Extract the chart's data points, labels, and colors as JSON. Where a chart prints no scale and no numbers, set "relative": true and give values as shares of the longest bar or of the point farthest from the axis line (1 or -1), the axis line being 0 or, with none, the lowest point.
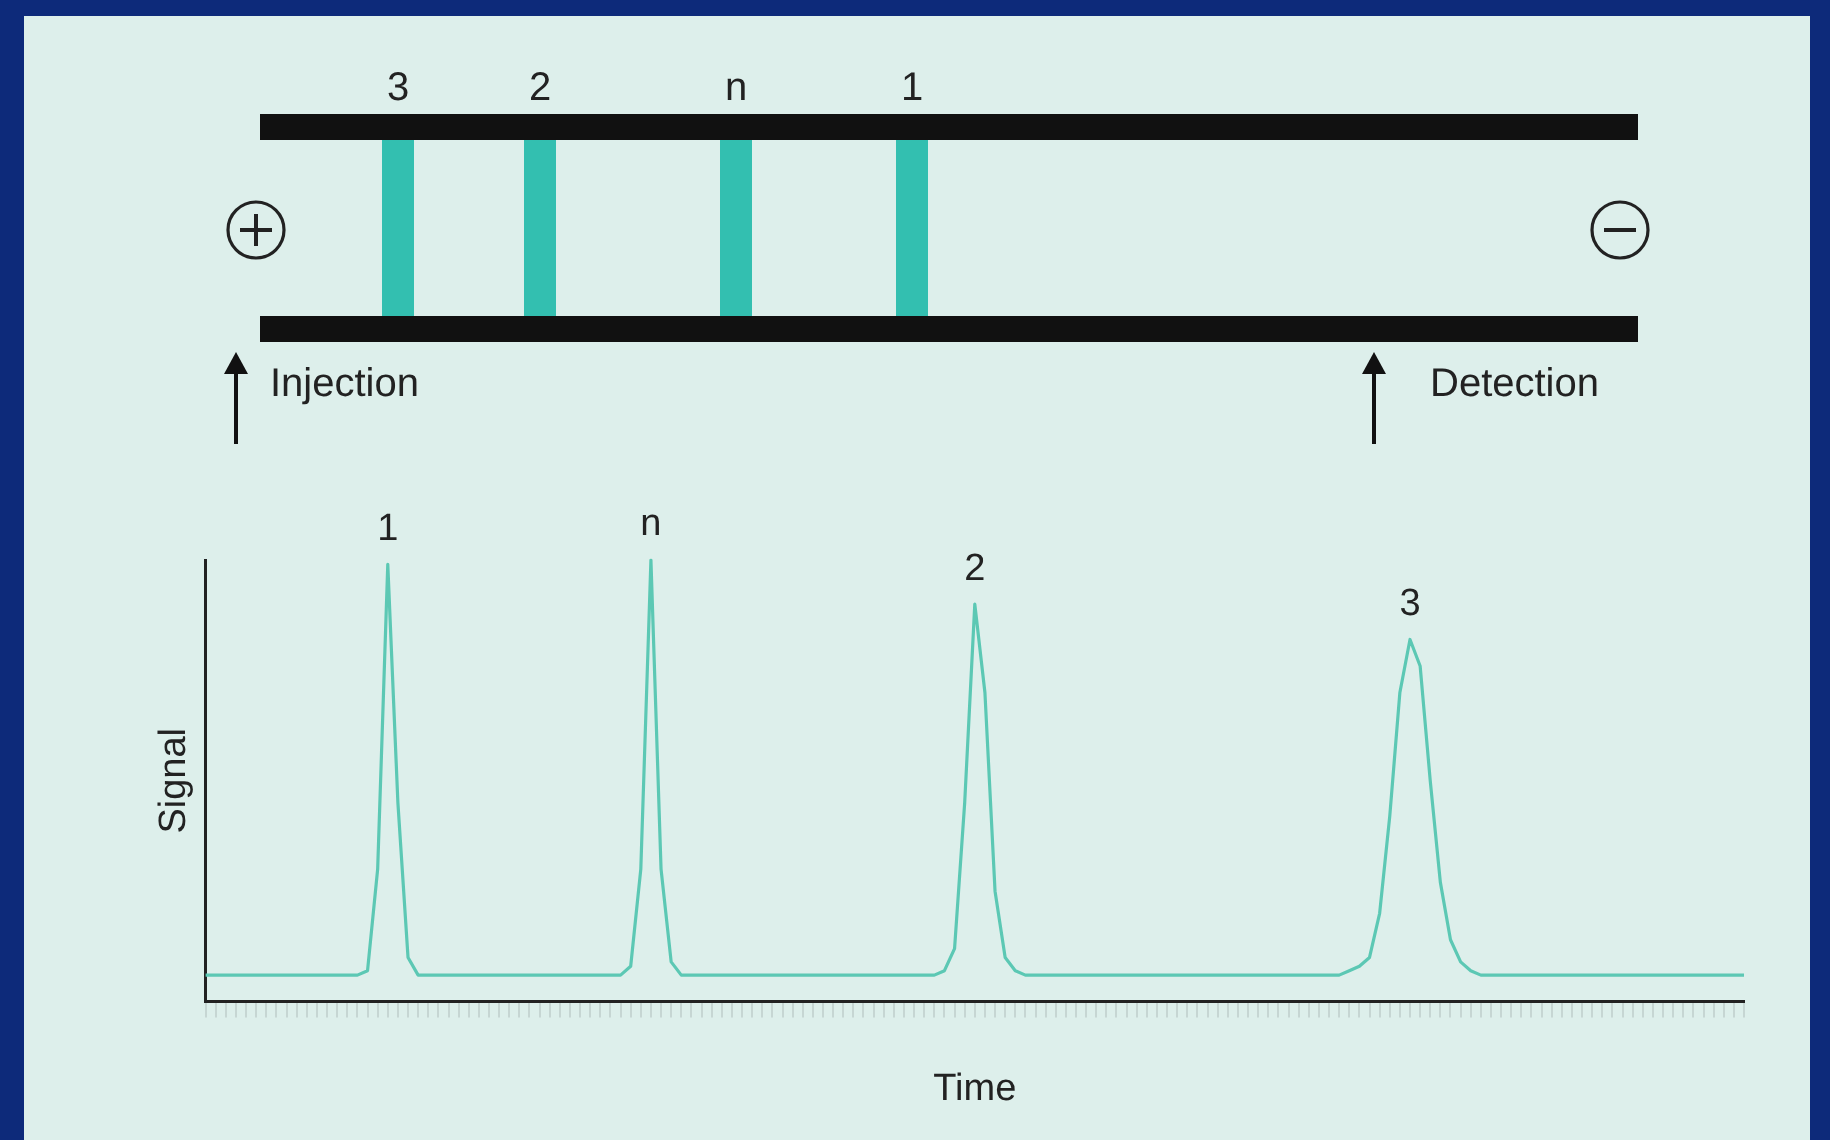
{
  "chart_data": {
    "type": "line",
    "relative": true,
    "xlabel": "Time",
    "ylabel": "Signal",
    "grid": false,
    "legend": false,
    "marker": "none",
    "line_style": "solid",
    "categories": [
      null,
      null,
      null,
      null,
      null,
      null,
      null,
      null,
      null,
      null,
      null,
      null,
      null,
      null,
      null,
      null,
      null,
      null,
      null,
      null,
      null,
      null,
      null,
      null,
      null,
      null,
      null,
      null,
      null,
      null,
      null,
      null,
      null,
      null,
      null,
      null,
      null,
      null,
      null,
      null,
      null,
      null,
      null,
      null,
      null,
      null,
      null,
      null,
      null,
      null,
      null,
      null,
      null,
      null,
      null,
      null,
      null,
      null,
      null,
      null,
      null,
      null,
      null,
      null,
      null,
      null,
      null,
      null,
      null,
      null,
      null,
      null,
      null,
      null,
      null,
      null,
      null,
      null,
      null,
      null,
      null,
      null,
      null,
      null,
      null,
      null,
      null,
      null,
      null,
      null,
      null,
      null,
      null,
      null,
      null,
      null,
      null,
      null,
      null,
      null,
      null,
      null,
      null,
      null,
      null,
      null,
      null,
      null,
      null,
      null,
      null,
      null,
      null,
      null,
      null,
      null,
      null,
      null,
      null,
      null,
      null,
      null,
      null,
      null,
      null,
      null,
      null,
      null,
      null,
      null,
      null,
      null,
      null,
      null,
      null,
      null,
      null,
      null,
      null,
      null,
      null,
      null,
      null,
      null,
      null,
      null,
      null,
      null,
      null,
      null,
      null,
      null,
      null
    ],
    "series": [
      {
        "color": "#5cc8b4",
        "values": [
          0.06,
          0.06,
          0.06,
          0.06,
          0.06,
          0.06,
          0.06,
          0.06,
          0.06,
          0.06,
          0.06,
          0.06,
          0.06,
          0.06,
          0.06,
          0.06,
          0.07,
          0.3,
          0.99,
          0.45,
          0.1,
          0.06,
          0.06,
          0.06,
          0.06,
          0.06,
          0.06,
          0.06,
          0.06,
          0.06,
          0.06,
          0.06,
          0.06,
          0.06,
          0.06,
          0.06,
          0.06,
          0.06,
          0.06,
          0.06,
          0.06,
          0.06,
          0.08,
          0.3,
          1.0,
          0.3,
          0.09,
          0.06,
          0.06,
          0.06,
          0.06,
          0.06,
          0.06,
          0.06,
          0.06,
          0.06,
          0.06,
          0.06,
          0.06,
          0.06,
          0.06,
          0.06,
          0.06,
          0.06,
          0.06,
          0.06,
          0.06,
          0.06,
          0.06,
          0.06,
          0.06,
          0.06,
          0.06,
          0.07,
          0.12,
          0.45,
          0.9,
          0.7,
          0.25,
          0.1,
          0.07,
          0.06,
          0.06,
          0.06,
          0.06,
          0.06,
          0.06,
          0.06,
          0.06,
          0.06,
          0.06,
          0.06,
          0.06,
          0.06,
          0.06,
          0.06,
          0.06,
          0.06,
          0.06,
          0.06,
          0.06,
          0.06,
          0.06,
          0.06,
          0.06,
          0.06,
          0.06,
          0.06,
          0.06,
          0.06,
          0.06,
          0.06,
          0.06,
          0.07,
          0.08,
          0.1,
          0.2,
          0.42,
          0.7,
          0.82,
          0.76,
          0.5,
          0.27,
          0.14,
          0.09,
          0.07,
          0.06,
          0.06,
          0.06,
          0.06,
          0.06,
          0.06,
          0.06,
          0.06,
          0.06,
          0.06,
          0.06,
          0.06,
          0.06,
          0.06,
          0.06,
          0.06,
          0.06,
          0.06,
          0.06,
          0.06,
          0.06,
          0.06,
          0.06,
          0.06,
          0.06,
          0.06,
          0.06
        ]
      }
    ],
    "annotations": [
      "1",
      "n",
      "2",
      "3",
      "3",
      "2",
      "n",
      "1",
      "Injection",
      "Detection"
    ]
  }
}
